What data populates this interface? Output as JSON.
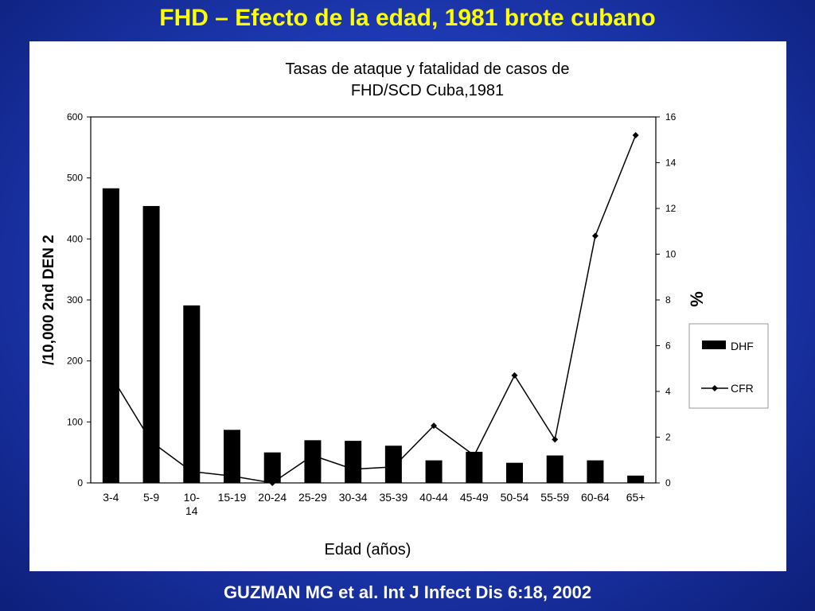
{
  "slide": {
    "title": "FHD – Efecto de la edad, 1981 brote cubano",
    "citation": "GUZMAN MG et al. Int J Infect Dis 6:18, 2002"
  },
  "chart_data": {
    "type": "bar",
    "title": "Tasas de ataque y fatalidad de casos de FHD/SCD Cuba,1981",
    "title_lines": [
      "Tasas de ataque y fatalidad de casos de",
      "FHD/SCD Cuba,1981"
    ],
    "xlabel": "Edad (años)",
    "ylabel": "/10,000 2nd DEN 2",
    "y2label": "%",
    "categories": [
      "3-4",
      "5-9",
      "10-14",
      "15-19",
      "20-24",
      "25-29",
      "30-34",
      "35-39",
      "40-44",
      "45-49",
      "50-54",
      "55-59",
      "60-64",
      "65+"
    ],
    "category_display": [
      [
        "3-4"
      ],
      [
        "5-9"
      ],
      [
        "10-",
        "14"
      ],
      [
        "15-19"
      ],
      [
        "20-24"
      ],
      [
        "25-29"
      ],
      [
        "30-34"
      ],
      [
        "35-39"
      ],
      [
        "40-44"
      ],
      [
        "45-49"
      ],
      [
        "50-54"
      ],
      [
        "55-59"
      ],
      [
        "60-64"
      ],
      [
        "65+"
      ]
    ],
    "series": [
      {
        "name": "DHF",
        "type": "bar",
        "axis": "left",
        "values": [
          483,
          454,
          291,
          87,
          50,
          70,
          69,
          61,
          37,
          51,
          33,
          45,
          37,
          12
        ]
      },
      {
        "name": "CFR",
        "type": "line",
        "axis": "right",
        "values": [
          4.7,
          1.8,
          0.5,
          0.3,
          0.0,
          1.2,
          0.6,
          0.7,
          2.5,
          1.2,
          4.7,
          1.9,
          10.8,
          15.2
        ]
      }
    ],
    "ylim": [
      0,
      600
    ],
    "yticks": [
      0,
      100,
      200,
      300,
      400,
      500,
      600
    ],
    "y2lim": [
      0,
      16
    ],
    "y2ticks": [
      0,
      2,
      4,
      6,
      8,
      10,
      12,
      14,
      16
    ],
    "grid": false,
    "legend_position": "right"
  },
  "colors": {
    "background": "#1f3bb8",
    "title": "#ffff00",
    "citation": "#ffffff",
    "panel": "#ffffff",
    "bars": "#000000",
    "line": "#000000"
  }
}
